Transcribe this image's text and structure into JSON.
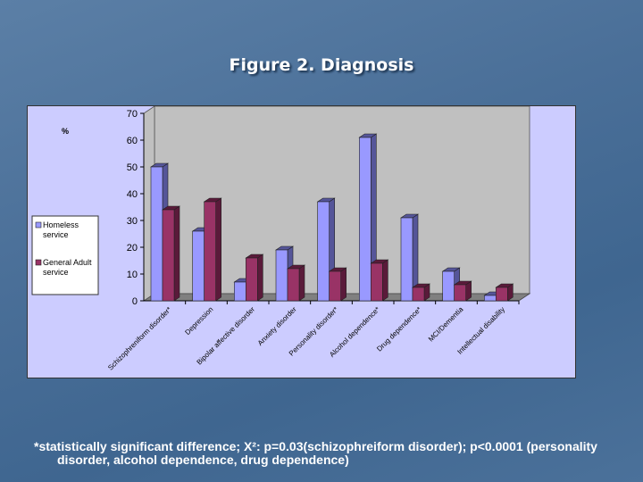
{
  "title": "Figure 2. Diagnosis",
  "footnote": {
    "line1": "*statistically significant difference; X²: p=0.03(schizophreiform disorder); p<0.0001 (personality",
    "line2": "disorder, alcohol dependence, drug dependence)"
  },
  "chart_data": {
    "type": "bar",
    "title": "Figure 2. Diagnosis",
    "ylabel": "%",
    "xlabel": "",
    "ylim": [
      0,
      70
    ],
    "yticks": [
      0,
      10,
      20,
      30,
      40,
      50,
      60,
      70
    ],
    "categories": [
      "Schizophreniform disorder*",
      "Depression",
      "Bipolar affective disorder",
      "Anxiety disorder",
      "Personality disorder*",
      "Alcohol dependence*",
      "Drug dependence*",
      "MCI/Dementia",
      "Intellectual disability"
    ],
    "series": [
      {
        "name": "Homeless service",
        "color": "#9999ff",
        "values": [
          50,
          26,
          7,
          19,
          37,
          61,
          31,
          11,
          2
        ]
      },
      {
        "name": "General Adult service",
        "color": "#993366",
        "values": [
          34,
          37,
          16,
          12,
          11,
          14,
          5,
          6,
          5
        ]
      }
    ],
    "legend": "left"
  }
}
